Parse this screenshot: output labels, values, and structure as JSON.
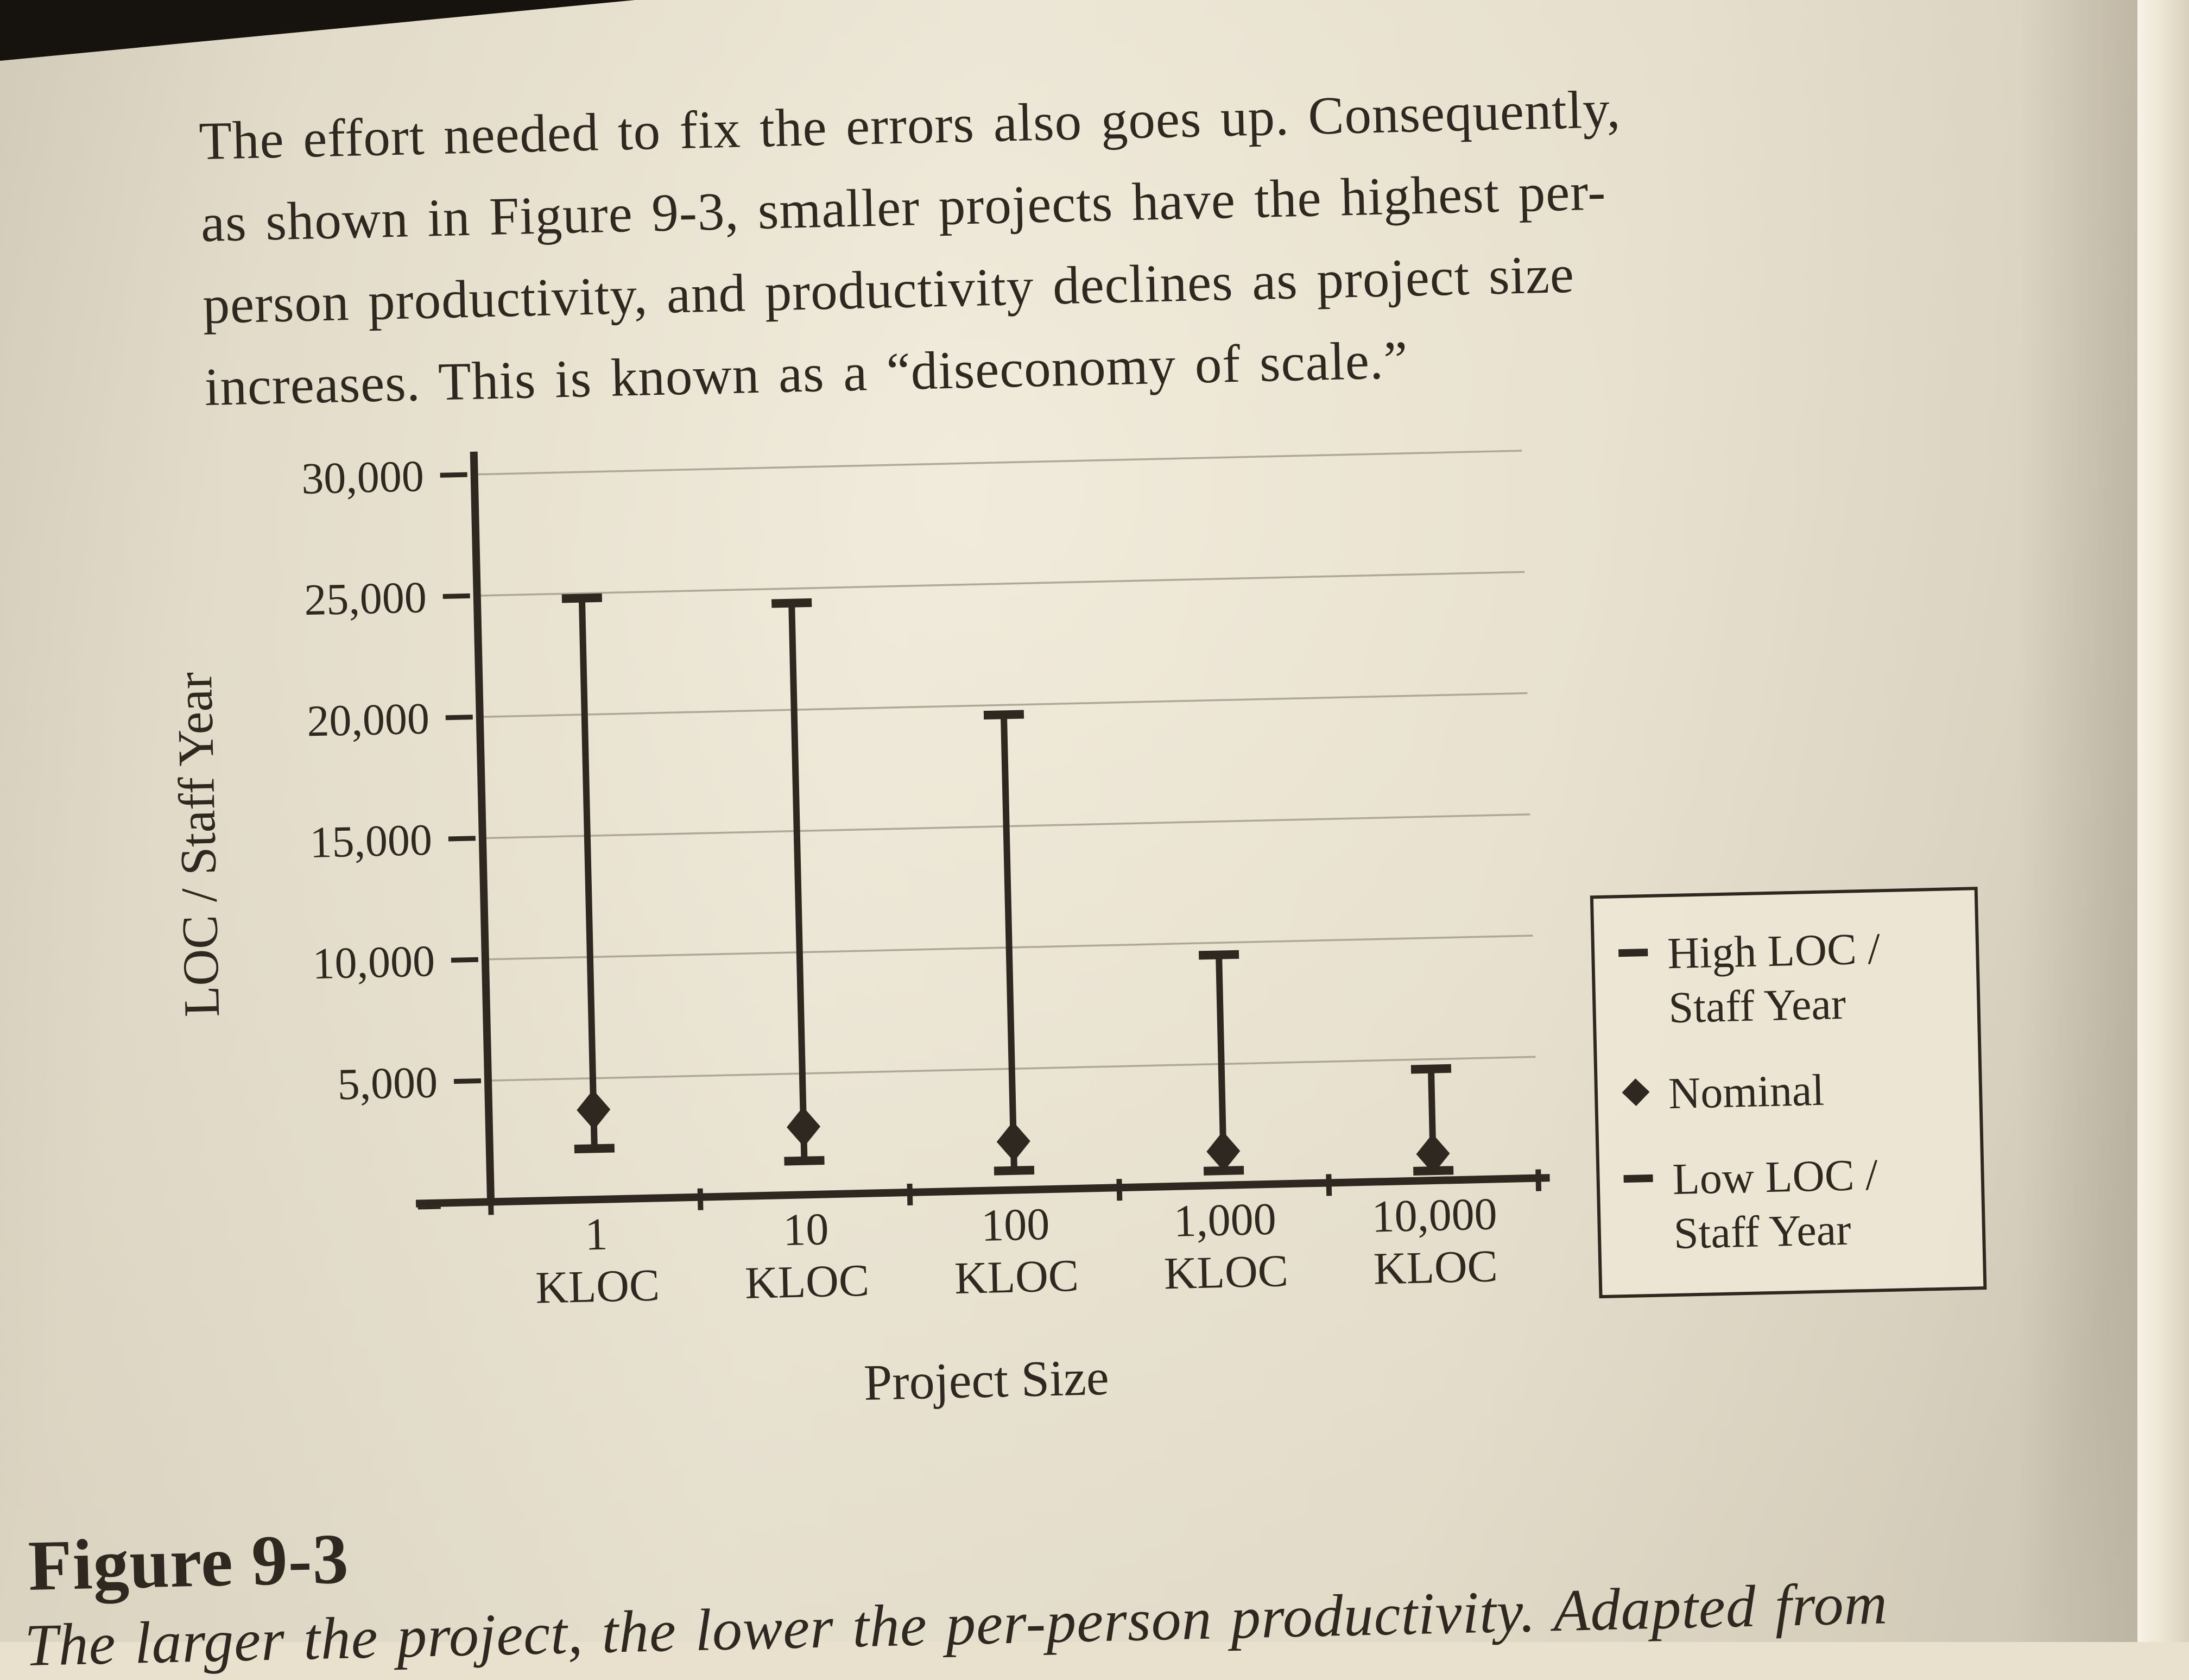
{
  "photo": {
    "paper_color": "#ece4d1",
    "ink_color": "#2e2820",
    "gridline_color": "#a59d8f"
  },
  "paragraph": {
    "lines": [
      "The effort needed to fix the errors also goes up. Consequently,",
      "as shown in Figure 9-3, smaller projects have the highest per-",
      "person productivity, and productivity declines as project size",
      "increases. This is known as a “diseconomy of scale.”"
    ]
  },
  "chart_data": {
    "type": "range",
    "title": "",
    "xlabel": "Project Size",
    "ylabel": "LOC / Staff Year",
    "ylim": [
      0,
      30000
    ],
    "grid": true,
    "legend_position": "top-right",
    "yticks": [
      {
        "value": 30000,
        "label": "30,000"
      },
      {
        "value": 25000,
        "label": "25,000"
      },
      {
        "value": 20000,
        "label": "20,000"
      },
      {
        "value": 15000,
        "label": "15,000"
      },
      {
        "value": 10000,
        "label": "10,000"
      },
      {
        "value": 5000,
        "label": "5,000"
      },
      {
        "value": 0,
        "label": "–"
      }
    ],
    "categories": [
      "1\nKLOC",
      "10\nKLOC",
      "100\nKLOC",
      "1,000\nKLOC",
      "10,000\nKLOC"
    ],
    "series": [
      {
        "name": "High LOC / Staff Year",
        "marker": "dash",
        "values": [
          24800,
          24400,
          19600,
          9500,
          4600
        ]
      },
      {
        "name": "Nominal",
        "marker": "diamond",
        "values": [
          3700,
          2800,
          2000,
          1400,
          1100
        ]
      },
      {
        "name": "Low LOC / Staff Year",
        "marker": "dash",
        "values": [
          2100,
          1400,
          800,
          600,
          400
        ]
      }
    ]
  },
  "legend": {
    "items": [
      {
        "marker": "dash",
        "label": "High LOC /\nStaff Year"
      },
      {
        "marker": "diamond",
        "label": "Nominal"
      },
      {
        "marker": "dash",
        "label": "Low LOC /\nStaff Year"
      }
    ]
  },
  "figure": {
    "label": "Figure 9-3",
    "caption": "The larger the project, the lower the per-person productivity. Adapted from"
  }
}
